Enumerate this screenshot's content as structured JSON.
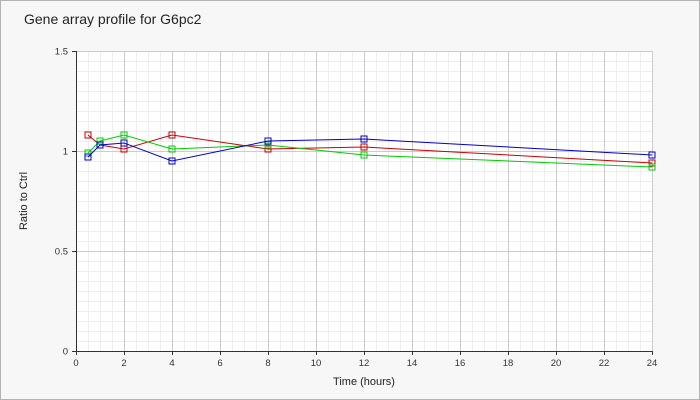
{
  "chart_data": {
    "type": "line",
    "title": "Gene array profile for G6pc2",
    "xlabel": "Time (hours)",
    "ylabel": "Ratio to Ctrl",
    "xlim": [
      0,
      24
    ],
    "ylim": [
      0,
      1.5
    ],
    "x_ticks": [
      0,
      2,
      4,
      6,
      8,
      10,
      12,
      14,
      16,
      18,
      20,
      22,
      24
    ],
    "y_ticks": [
      0,
      0.5,
      1,
      1.5
    ],
    "y_tick_labels": [
      "0",
      "0.5",
      "1",
      "1.5"
    ],
    "grid": true,
    "marker": "square",
    "series": [
      {
        "color": "#cc0000",
        "x": [
          0.5,
          1,
          2,
          4,
          8,
          12,
          24
        ],
        "values": [
          1.08,
          1.03,
          1.01,
          1.08,
          1.01,
          1.02,
          0.94
        ]
      },
      {
        "color": "#00cc00",
        "x": [
          0.5,
          1,
          2,
          4,
          8,
          12,
          24
        ],
        "values": [
          0.99,
          1.05,
          1.08,
          1.01,
          1.03,
          0.98,
          0.92
        ]
      },
      {
        "color": "#0000cc",
        "x": [
          0.5,
          1,
          2,
          4,
          8,
          12,
          24
        ],
        "values": [
          0.97,
          1.03,
          1.04,
          0.95,
          1.05,
          1.06,
          0.98
        ]
      }
    ]
  }
}
